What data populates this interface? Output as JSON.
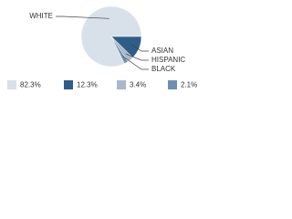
{
  "chart_data": {
    "type": "pie",
    "categories": [
      "WHITE",
      "ASIAN",
      "HISPANIC",
      "BLACK"
    ],
    "values": [
      82.3,
      12.3,
      3.4,
      2.1
    ],
    "value_labels": [
      "82.3%",
      "12.3%",
      "3.4%",
      "2.1%"
    ],
    "colors": [
      "#d8e0ea",
      "#2f5d87",
      "#a8b9cc",
      "#6f8fb2"
    ]
  }
}
